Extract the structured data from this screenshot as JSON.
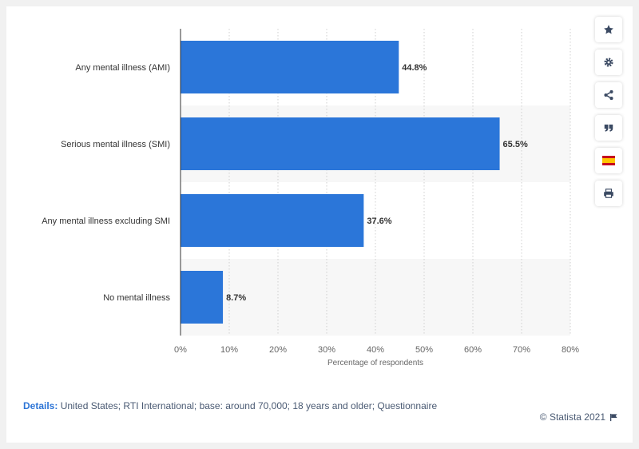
{
  "chart_data": {
    "type": "bar",
    "orientation": "horizontal",
    "categories": [
      "Any mental illness (AMI)",
      "Serious mental illness (SMI)",
      "Any mental illness excluding SMI",
      "No mental illness"
    ],
    "values": [
      44.8,
      65.5,
      37.6,
      8.7
    ],
    "value_labels": [
      "44.8%",
      "65.5%",
      "37.6%",
      "8.7%"
    ],
    "xlabel": "Percentage of respondents",
    "xlim": [
      0,
      80
    ],
    "xticks": [
      "0%",
      "10%",
      "20%",
      "30%",
      "40%",
      "50%",
      "60%",
      "70%",
      "80%"
    ],
    "bar_color": "#2b76d9",
    "grid": true
  },
  "toolbar": {
    "buttons": [
      "star-icon",
      "gear-icon",
      "share-icon",
      "quote-icon",
      "spain-flag-icon",
      "print-icon"
    ]
  },
  "footer": {
    "details_label": "Details:",
    "details_text": "United States; RTI International; base: around 70,000; 18 years and older; Questionnaire",
    "credit": "© Statista 2021"
  },
  "colors": {
    "accent": "#2c74d6",
    "icon": "#3b4a63",
    "band": "#f7f7f7"
  }
}
